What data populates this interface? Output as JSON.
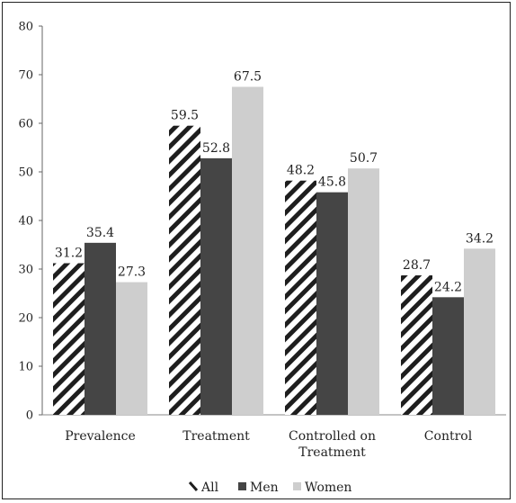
{
  "chart_data": {
    "type": "bar",
    "categories": [
      "Prevalence",
      "Treatment",
      "Controlled on Treatment",
      "Control"
    ],
    "category_lines": [
      [
        "Prevalence"
      ],
      [
        "Treatment"
      ],
      [
        "Controlled on",
        "Treatment"
      ],
      [
        "Control"
      ]
    ],
    "series": [
      {
        "name": "All",
        "values": [
          31.2,
          59.5,
          48.2,
          28.7
        ],
        "color": "#1e1e1e",
        "pattern": "diagonal-hatch"
      },
      {
        "name": "Men",
        "values": [
          35.4,
          52.8,
          45.8,
          24.2
        ],
        "color": "#454545"
      },
      {
        "name": "Women",
        "values": [
          27.3,
          67.5,
          50.7,
          34.2
        ],
        "color": "#cecece"
      }
    ],
    "value_labels": [
      [
        "31.2",
        "59.5",
        "48.2",
        "28.7"
      ],
      [
        "35.4",
        "52.8",
        "45.8",
        "24.2"
      ],
      [
        "27.3",
        "67.5",
        "50.7",
        "34.2"
      ]
    ],
    "ylim": [
      0,
      80
    ],
    "yticks": [
      0,
      10,
      20,
      30,
      40,
      50,
      60,
      70,
      80
    ],
    "title": "",
    "xlabel": "",
    "ylabel": "",
    "legend_position": "bottom",
    "grid": false
  }
}
